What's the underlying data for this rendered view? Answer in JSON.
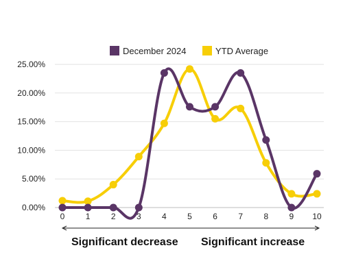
{
  "chart_data": {
    "type": "line",
    "x": [
      0,
      1,
      2,
      3,
      4,
      5,
      6,
      7,
      8,
      9,
      10
    ],
    "ylim": [
      0,
      25
    ],
    "yticks": [
      "0.00%",
      "5.00%",
      "10.00%",
      "15.00%",
      "20.00%",
      "25.00%"
    ],
    "xticks": [
      "0",
      "1",
      "2",
      "3",
      "4",
      "5",
      "6",
      "7",
      "8",
      "9",
      "10"
    ],
    "series": [
      {
        "name": "December 2024",
        "color": "#5a3566",
        "values": [
          0,
          0,
          0,
          0,
          23.5,
          17.6,
          17.6,
          23.5,
          11.8,
          0,
          5.9
        ]
      },
      {
        "name": "YTD Average",
        "color": "#f7ce07",
        "values": [
          1.2,
          1.1,
          4.0,
          8.9,
          14.7,
          24.2,
          15.5,
          17.3,
          7.8,
          2.4,
          2.4
        ]
      }
    ],
    "grid": "horizontal",
    "legend": "top",
    "annotations": {
      "left": "Significant decrease",
      "right": "Significant increase"
    }
  }
}
